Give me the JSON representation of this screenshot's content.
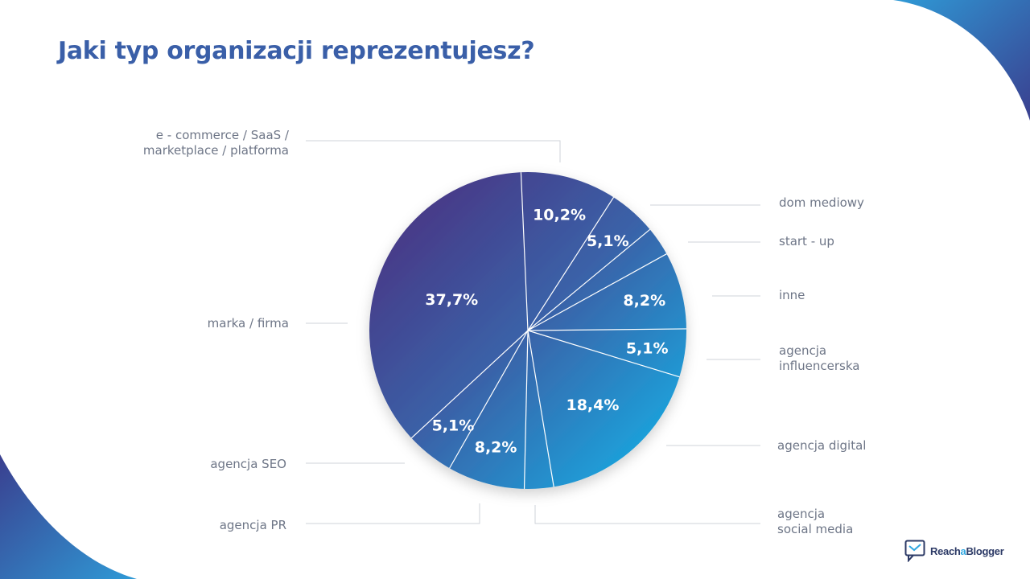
{
  "title": "Jaki typ organizacji reprezentujesz?",
  "colors": {
    "title": "#3a5fa8",
    "label": "#6e7687",
    "leader": "#cfd3da",
    "pie_dark": "#4c2b7c",
    "pie_mid": "#3a62a8",
    "pie_light": "#12b7ec",
    "corner_dark": "#3a3f8f",
    "corner_light": "#2f9ad6"
  },
  "chart_data": {
    "type": "pie",
    "slices": [
      {
        "label": "e - commerce / SaaS / marketplace / platforma",
        "value": 10.2,
        "value_label": "10,2%"
      },
      {
        "label": "dom mediowy",
        "value": 5.1,
        "value_label": "5,1%"
      },
      {
        "label": "start - up",
        "value": 3.1,
        "value_label": ""
      },
      {
        "label": "inne",
        "value": 8.2,
        "value_label": "8,2%"
      },
      {
        "label": "agencja influencerska",
        "value": 5.1,
        "value_label": "5,1%"
      },
      {
        "label": "agencja digital",
        "value": 18.4,
        "value_label": "18,4%"
      },
      {
        "label": "agencja social media",
        "value": 3.1,
        "value_label": ""
      },
      {
        "label": "agencja PR",
        "value": 8.2,
        "value_label": "8,2%"
      },
      {
        "label": "agencja SEO",
        "value": 5.1,
        "value_label": "5,1%"
      },
      {
        "label": "marka / firma",
        "value": 37.7,
        "value_label": "37,7%"
      }
    ]
  },
  "labels": {
    "ecommerce_line1": "e - commerce / SaaS /",
    "ecommerce_line2": "marketplace / platforma",
    "dom_mediowy": "dom mediowy",
    "startup": "start - up",
    "inne": "inne",
    "influencer_line1": "agencja",
    "influencer_line2": "influencerska",
    "digital": "agencja digital",
    "social_line1": "agencja",
    "social_line2": "social media",
    "pr": "agencja PR",
    "seo": "agencja SEO",
    "marka": "marka / firma"
  },
  "logo": {
    "prefix": "Reach",
    "accent": "a",
    "suffix": "Blogger"
  }
}
